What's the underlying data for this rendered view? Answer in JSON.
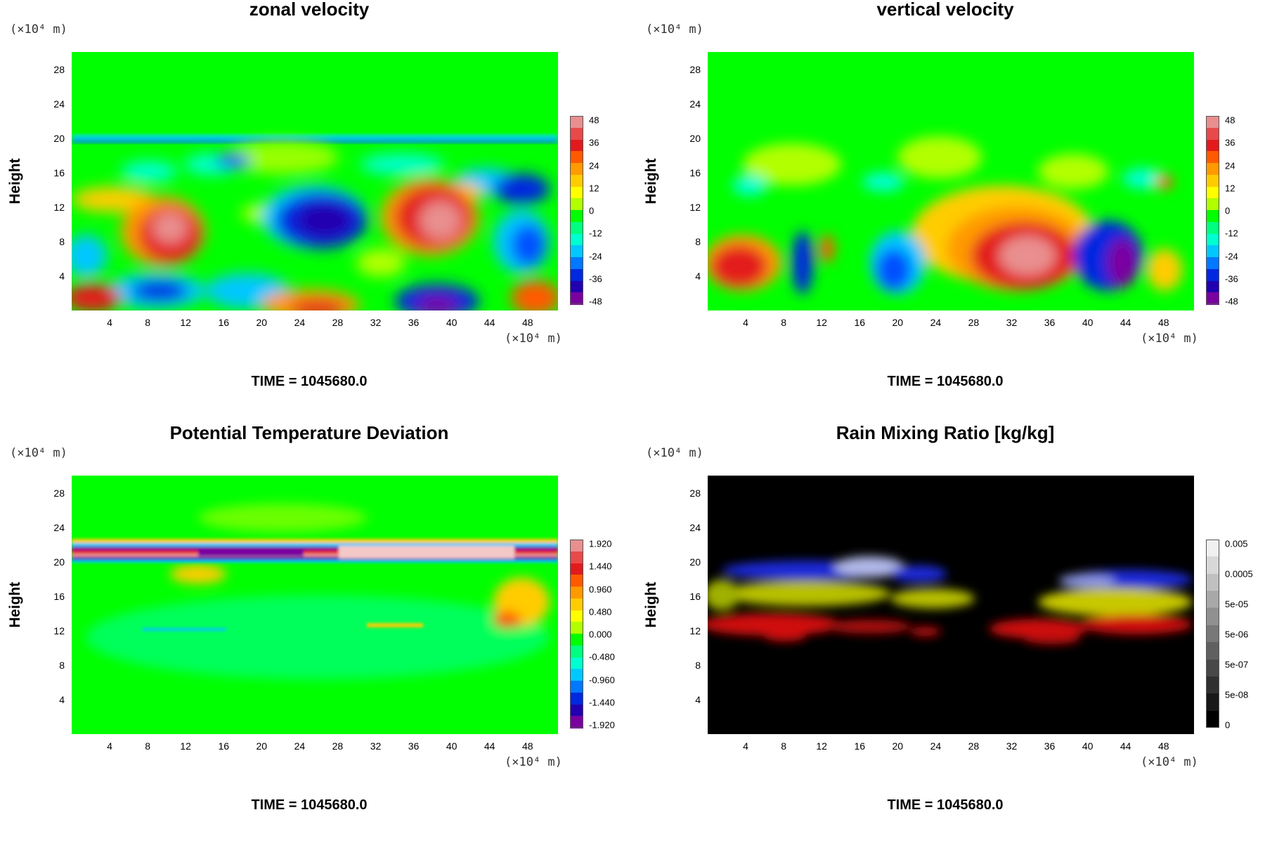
{
  "panels": [
    {
      "id": "zonal",
      "title": "zonal velocity",
      "yunit": "(×10⁴ m)",
      "xunit": "(×10⁴ m)",
      "ylabel": "Height",
      "time": "TIME = 1045680.0",
      "colorbar": [
        "48",
        "36",
        "24",
        "12",
        "0",
        "-12",
        "-24",
        "-36",
        "-48"
      ]
    },
    {
      "id": "vertical",
      "title": "vertical velocity",
      "yunit": "(×10⁴ m)",
      "xunit": "(×10⁴ m)",
      "ylabel": "Height",
      "time": "TIME = 1045680.0",
      "colorbar": [
        "48",
        "36",
        "24",
        "12",
        "0",
        "-12",
        "-24",
        "-36",
        "-48"
      ]
    },
    {
      "id": "ptd",
      "title": "Potential Temperature Deviation",
      "yunit": "(×10⁴ m)",
      "xunit": "(×10⁴ m)",
      "ylabel": "Height",
      "time": "TIME = 1045680.0",
      "colorbar": [
        "1.920",
        "1.440",
        "0.960",
        "0.480",
        "0.000",
        "-0.480",
        "-0.960",
        "-1.440",
        "-1.920"
      ]
    },
    {
      "id": "rain",
      "title": "Rain Mixing Ratio [kg/kg]",
      "yunit": "(×10⁴ m)",
      "xunit": "(×10⁴ m)",
      "ylabel": "Height",
      "time": "TIME = 1045680.0",
      "colorbar": [
        "0.005",
        "0.0005",
        "5e-05",
        "5e-06",
        "5e-07",
        "5e-08",
        "0"
      ]
    }
  ],
  "chart_data": [
    {
      "type": "heatmap",
      "title": "zonal velocity",
      "ylabel": "Height",
      "xlabel": "",
      "x_ticks": [
        4,
        8,
        12,
        16,
        20,
        24,
        28,
        32,
        36,
        40,
        44,
        48
      ],
      "y_ticks": [
        4,
        8,
        12,
        16,
        20,
        24,
        28
      ],
      "xlim": [
        0,
        51.2
      ],
      "ylim": [
        0,
        30
      ],
      "colorbar_range": [
        -48,
        48
      ],
      "colorbar_ticks": [
        48,
        36,
        24,
        12,
        0,
        -12,
        -24,
        -36,
        -48
      ]
    },
    {
      "type": "heatmap",
      "title": "vertical velocity",
      "ylabel": "Height",
      "xlabel": "",
      "x_ticks": [
        4,
        8,
        12,
        16,
        20,
        24,
        28,
        32,
        36,
        40,
        44,
        48
      ],
      "y_ticks": [
        4,
        8,
        12,
        16,
        20,
        24,
        28
      ],
      "xlim": [
        0,
        51.2
      ],
      "ylim": [
        0,
        30
      ],
      "colorbar_range": [
        -48,
        48
      ],
      "colorbar_ticks": [
        48,
        36,
        24,
        12,
        0,
        -12,
        -24,
        -36,
        -48
      ]
    },
    {
      "type": "heatmap",
      "title": "Potential Temperature Deviation",
      "ylabel": "Height",
      "xlabel": "",
      "x_ticks": [
        4,
        8,
        12,
        16,
        20,
        24,
        28,
        32,
        36,
        40,
        44,
        48
      ],
      "y_ticks": [
        4,
        8,
        12,
        16,
        20,
        24,
        28
      ],
      "xlim": [
        0,
        51.2
      ],
      "ylim": [
        0,
        30
      ],
      "colorbar_range": [
        -1.92,
        1.92
      ],
      "colorbar_ticks": [
        1.92,
        1.44,
        0.96,
        0.48,
        0.0,
        -0.48,
        -0.96,
        -1.44,
        -1.92
      ]
    },
    {
      "type": "heatmap",
      "title": "Rain Mixing Ratio [kg/kg]",
      "ylabel": "Height",
      "xlabel": "",
      "x_ticks": [
        4,
        8,
        12,
        16,
        20,
        24,
        28,
        32,
        36,
        40,
        44,
        48
      ],
      "y_ticks": [
        4,
        8,
        12,
        16,
        20,
        24,
        28
      ],
      "xlim": [
        0,
        51.2
      ],
      "ylim": [
        0,
        30
      ],
      "colorbar_ticks": [
        "0.005",
        "0.0005",
        "5e-05",
        "5e-06",
        "5e-07",
        "5e-08",
        "0"
      ],
      "colorbar_scale": "log"
    }
  ],
  "palette": {
    "rainbow": [
      "#e98f8f",
      "#e84a4a",
      "#e31a1c",
      "#ff5a00",
      "#ff9a00",
      "#ffcc00",
      "#ffff00",
      "#b2ff00",
      "#00ff00",
      "#00ff80",
      "#00ffd0",
      "#00c8ff",
      "#0078ff",
      "#0028e0",
      "#2000b0",
      "#7a00a0"
    ],
    "gray": [
      "#f0f0f0",
      "#d8d8d8",
      "#c0c0c0",
      "#a8a8a8",
      "#909090",
      "#787878",
      "#606060",
      "#484848",
      "#303030",
      "#181818",
      "#000000"
    ],
    "plot_green": "#00ff00",
    "rain_bg": "#000000"
  }
}
